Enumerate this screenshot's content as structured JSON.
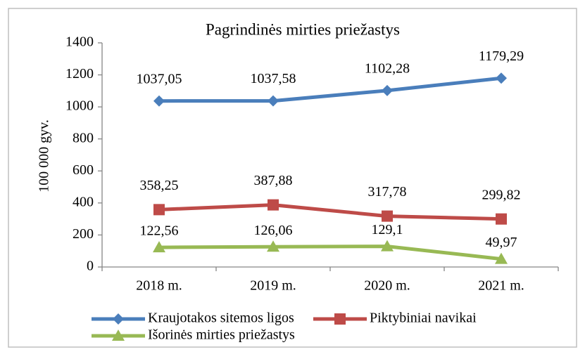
{
  "chart_data": {
    "type": "line",
    "title": "Pagrindinės mirties priežastys",
    "y_label": "100 000 gyv.",
    "categories": [
      "2018 m.",
      "2019 m.",
      "2020 m.",
      "2021 m."
    ],
    "series": [
      {
        "name": "Kraujotakos sitemos ligos",
        "color": "#4a7ebb",
        "marker": "diamond",
        "values": [
          1037.05,
          1037.58,
          1102.28,
          1179.29
        ],
        "value_labels": [
          "1037,05",
          "1037,58",
          "1102,28",
          "1179,29"
        ]
      },
      {
        "name": "Piktybiniai navikai",
        "color": "#be4b48",
        "marker": "square",
        "values": [
          358.25,
          387.88,
          317.78,
          299.82
        ],
        "value_labels": [
          "358,25",
          "387,88",
          "317,78",
          "299,82"
        ]
      },
      {
        "name": "Išorinės mirties priežastys",
        "color": "#98b954",
        "marker": "triangle",
        "values": [
          122.56,
          126.06,
          129.1,
          49.97
        ],
        "value_labels": [
          "122,56",
          "126,06",
          "129,1",
          "49,97"
        ]
      }
    ],
    "ylim": [
      0,
      1400
    ],
    "yticks": [
      0,
      200,
      400,
      600,
      800,
      1000,
      1200,
      1400
    ],
    "grid": false,
    "legend": "bottom"
  }
}
